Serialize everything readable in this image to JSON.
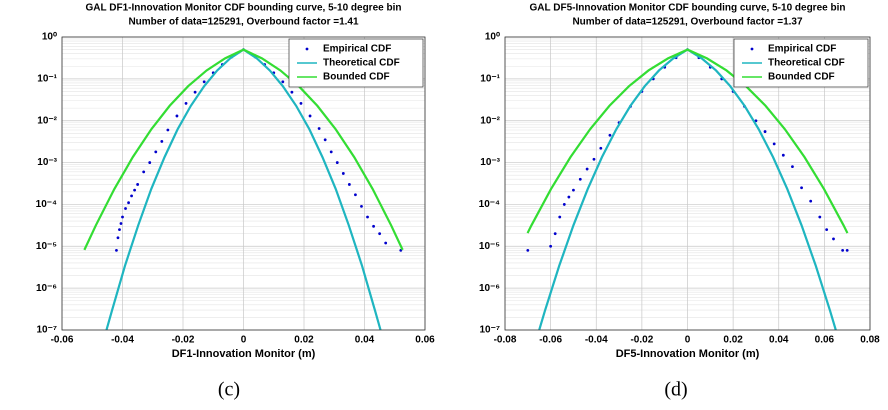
{
  "chart_data": [
    {
      "type": "line",
      "title": "GAL DF1-Innovation Monitor CDF bounding curve, 5-10 degree bin",
      "subtitle": "Number of data=125291, Overbound factor =1.41",
      "xlabel": "DF1-Innovation Monitor (m)",
      "caption": "(c)",
      "xlim": [
        -0.06,
        0.06
      ],
      "xticks": [
        -0.06,
        -0.04,
        -0.02,
        0,
        0.02,
        0.04,
        0.06
      ],
      "ylim": [
        1e-07,
        1
      ],
      "log_y": true,
      "grid": true,
      "legend": "upper right",
      "yticks": [
        {
          "value": 1e-07,
          "label": "10⁻⁷"
        },
        {
          "value": 1e-06,
          "label": "10⁻⁶"
        },
        {
          "value": 1e-05,
          "label": "10⁻⁵"
        },
        {
          "value": 0.0001,
          "label": "10⁻⁴"
        },
        {
          "value": 0.001,
          "label": "10⁻³"
        },
        {
          "value": 0.01,
          "label": "10⁻²"
        },
        {
          "value": 0.1,
          "label": "10⁻¹"
        },
        {
          "value": 1,
          "label": "10⁰"
        }
      ],
      "series": [
        {
          "name": "Empirical CDF",
          "color": "#0000cc",
          "mode": "markers",
          "x": [
            -0.042,
            -0.0415,
            -0.041,
            -0.0405,
            -0.04,
            -0.039,
            -0.038,
            -0.037,
            -0.036,
            -0.035,
            -0.033,
            -0.031,
            -0.029,
            -0.027,
            -0.025,
            -0.022,
            -0.019,
            -0.016,
            -0.013,
            -0.01,
            -0.007,
            -0.004,
            0,
            0.004,
            0.007,
            0.01,
            0.013,
            0.016,
            0.019,
            0.022,
            0.025,
            0.027,
            0.029,
            0.031,
            0.033,
            0.035,
            0.037,
            0.039,
            0.041,
            0.043,
            0.045,
            0.047,
            0.052
          ],
          "values": [
            8e-06,
            1.6e-05,
            2.5e-05,
            3.5e-05,
            5e-05,
            8e-05,
            0.00011,
            0.00016,
            0.00022,
            0.0003,
            0.0006,
            0.001,
            0.0018,
            0.0032,
            0.006,
            0.013,
            0.026,
            0.048,
            0.085,
            0.14,
            0.22,
            0.33,
            0.5,
            0.33,
            0.22,
            0.14,
            0.085,
            0.048,
            0.026,
            0.013,
            0.0065,
            0.0035,
            0.0018,
            0.001,
            0.00055,
            0.0003,
            0.00017,
            9e-05,
            5e-05,
            3e-05,
            2e-05,
            1.2e-05,
            8e-06
          ]
        },
        {
          "name": "Theoretical CDF",
          "color": "#1fb5c0",
          "mode": "lines",
          "x": [
            -0.0453,
            -0.0435,
            -0.0392,
            -0.0348,
            -0.0305,
            -0.0261,
            -0.0218,
            -0.0174,
            -0.013,
            -0.0087,
            -0.0044,
            0,
            0.0044,
            0.0087,
            0.013,
            0.0174,
            0.0218,
            0.0261,
            0.0305,
            0.0348,
            0.0392,
            0.0435,
            0.0453
          ],
          "values": [
            1e-07,
            2.87e-07,
            3.4e-06,
            3.17e-05,
            0.000233,
            0.00135,
            0.00621,
            0.02275,
            0.0668,
            0.1587,
            0.3085,
            0.5,
            0.3085,
            0.1587,
            0.0668,
            0.02275,
            0.00621,
            0.00135,
            0.000233,
            3.17e-05,
            3.4e-06,
            2.87e-07,
            1e-07
          ]
        },
        {
          "name": "Bounded CDF",
          "color": "#33dd33",
          "mode": "lines",
          "x": [
            -0.0526,
            -0.0488,
            -0.0427,
            -0.0366,
            -0.0305,
            -0.0244,
            -0.0183,
            -0.0122,
            -0.0061,
            0,
            0.0061,
            0.0122,
            0.0183,
            0.0244,
            0.0305,
            0.0366,
            0.0427,
            0.0488,
            0.0526
          ],
          "values": [
            8.2e-06,
            3.17e-05,
            0.000233,
            0.00135,
            0.00621,
            0.02275,
            0.0668,
            0.1587,
            0.3085,
            0.5,
            0.3085,
            0.1587,
            0.0668,
            0.02275,
            0.00621,
            0.00135,
            0.000233,
            3.17e-05,
            8.2e-06
          ]
        }
      ]
    },
    {
      "type": "line",
      "title": "GAL DF5-Innovation Monitor CDF bounding curve, 5-10 degree bin",
      "subtitle": "Number of data=125291, Overbound factor =1.37",
      "xlabel": "DF5-Innovation Monitor (m)",
      "caption": "(d)",
      "xlim": [
        -0.08,
        0.08
      ],
      "xticks": [
        -0.08,
        -0.06,
        -0.04,
        -0.02,
        0,
        0.02,
        0.04,
        0.06,
        0.08
      ],
      "ylim": [
        1e-07,
        1
      ],
      "log_y": true,
      "grid": true,
      "legend": "upper right",
      "yticks": [
        {
          "value": 1e-07,
          "label": "10⁻⁷"
        },
        {
          "value": 1e-06,
          "label": "10⁻⁶"
        },
        {
          "value": 1e-05,
          "label": "10⁻⁵"
        },
        {
          "value": 0.0001,
          "label": "10⁻⁴"
        },
        {
          "value": 0.001,
          "label": "10⁻³"
        },
        {
          "value": 0.01,
          "label": "10⁻²"
        },
        {
          "value": 0.1,
          "label": "10⁻¹"
        },
        {
          "value": 1,
          "label": "10⁰"
        }
      ],
      "series": [
        {
          "name": "Empirical CDF",
          "color": "#0000cc",
          "mode": "markers",
          "x": [
            -0.07,
            -0.06,
            -0.058,
            -0.056,
            -0.054,
            -0.052,
            -0.05,
            -0.047,
            -0.044,
            -0.041,
            -0.038,
            -0.034,
            -0.03,
            -0.025,
            -0.02,
            -0.015,
            -0.01,
            -0.005,
            0,
            0.005,
            0.01,
            0.015,
            0.02,
            0.025,
            0.03,
            0.034,
            0.038,
            0.042,
            0.046,
            0.05,
            0.054,
            0.058,
            0.061,
            0.064,
            0.068,
            0.07
          ],
          "values": [
            8e-06,
            1e-05,
            2e-05,
            5e-05,
            0.0001,
            0.00015,
            0.00022,
            0.0004,
            0.0007,
            0.0012,
            0.0022,
            0.0045,
            0.009,
            0.022,
            0.05,
            0.1,
            0.19,
            0.32,
            0.5,
            0.32,
            0.19,
            0.1,
            0.05,
            0.022,
            0.01,
            0.0055,
            0.0028,
            0.0015,
            0.0008,
            0.00025,
            0.00012,
            5e-05,
            2.5e-05,
            1.5e-05,
            8e-06,
            8e-06
          ]
        },
        {
          "name": "Theoretical CDF",
          "color": "#1fb5c0",
          "mode": "lines",
          "x": [
            -0.065,
            -0.0625,
            -0.05625,
            -0.05,
            -0.04375,
            -0.0375,
            -0.03125,
            -0.025,
            -0.01875,
            -0.0125,
            -0.00625,
            0,
            0.00625,
            0.0125,
            0.01875,
            0.025,
            0.03125,
            0.0375,
            0.04375,
            0.05,
            0.05625,
            0.0625,
            0.065
          ],
          "values": [
            1e-07,
            2.87e-07,
            3.4e-06,
            3.17e-05,
            0.000233,
            0.00135,
            0.00621,
            0.02275,
            0.0668,
            0.1587,
            0.3085,
            0.5,
            0.3085,
            0.1587,
            0.0668,
            0.02275,
            0.00621,
            0.00135,
            0.000233,
            3.17e-05,
            3.4e-06,
            2.87e-07,
            1e-07
          ]
        },
        {
          "name": "Bounded CDF",
          "color": "#33dd33",
          "mode": "lines",
          "x": [
            -0.0701,
            -0.0684,
            -0.05985,
            -0.0513,
            -0.04275,
            -0.0342,
            -0.02565,
            -0.0171,
            -0.00855,
            0,
            0.00855,
            0.0171,
            0.02565,
            0.0342,
            0.04275,
            0.0513,
            0.05985,
            0.0684,
            0.0701
          ],
          "values": [
            2.07e-05,
            3.17e-05,
            0.000233,
            0.00135,
            0.00621,
            0.02275,
            0.0668,
            0.1587,
            0.3085,
            0.5,
            0.3085,
            0.1587,
            0.0668,
            0.02275,
            0.00621,
            0.00135,
            0.000233,
            3.17e-05,
            2.07e-05
          ]
        }
      ]
    }
  ]
}
